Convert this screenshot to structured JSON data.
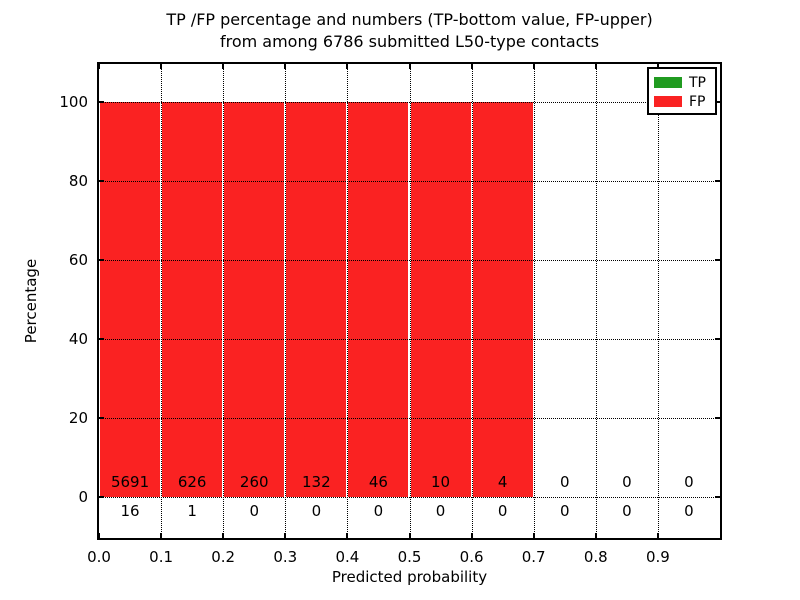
{
  "title": {
    "line1": "TP /FP percentage and numbers (TP-bottom value, FP-upper)",
    "line2": "from among 6786 submitted L50-type contacts"
  },
  "axes": {
    "xlabel": "Predicted probability",
    "ylabel": "Percentage",
    "ytick_labels": [
      "0",
      "20",
      "40",
      "60",
      "80",
      "100"
    ],
    "ytick_values": [
      0,
      20,
      40,
      60,
      80,
      100
    ],
    "xtick_labels": [
      "0.0",
      "0.1",
      "0.2",
      "0.3",
      "0.4",
      "0.5",
      "0.6",
      "0.7",
      "0.8",
      "0.9"
    ],
    "xtick_values": [
      0.0,
      0.1,
      0.2,
      0.3,
      0.4,
      0.5,
      0.6,
      0.7,
      0.8,
      0.9
    ],
    "xlim": [
      0.0,
      1.0
    ],
    "ylim": [
      -10.5,
      109.5
    ],
    "grid": "dotted"
  },
  "legend": {
    "position": "upper right",
    "entries": [
      {
        "label": "TP",
        "color": "#209b20"
      },
      {
        "label": "FP",
        "color": "#fa2222"
      }
    ]
  },
  "chart_data": {
    "type": "bar",
    "subtype": "stacked-percentage-histogram",
    "title": "TP /FP percentage and numbers (TP-bottom value, FP-upper) from among 6786 submitted L50-type contacts",
    "xlabel": "Predicted probability",
    "ylabel": "Percentage",
    "total_contacts": 6786,
    "bin_width": 0.1,
    "bin_starts": [
      0.0,
      0.1,
      0.2,
      0.3,
      0.4,
      0.5,
      0.6,
      0.7,
      0.8,
      0.9
    ],
    "series": [
      {
        "name": "TP",
        "color": "#209b20",
        "counts": [
          16,
          1,
          0,
          0,
          0,
          0,
          0,
          0,
          0,
          0
        ],
        "percent": [
          0.28,
          0.16,
          0,
          0,
          0,
          0,
          0,
          0,
          0,
          0
        ]
      },
      {
        "name": "FP",
        "color": "#fa2222",
        "counts": [
          5691,
          626,
          260,
          132,
          46,
          10,
          4,
          0,
          0,
          0
        ],
        "percent": [
          99.72,
          99.84,
          100,
          100,
          100,
          100,
          100,
          0,
          0,
          0
        ]
      }
    ],
    "annotation_note": "FP count printed above 0-line inside each bin, TP count printed below 0-line",
    "xlim": [
      0.0,
      1.0
    ],
    "ylim": [
      -10.5,
      109.5
    ],
    "grid": "dotted",
    "legend_position": "upper right"
  }
}
